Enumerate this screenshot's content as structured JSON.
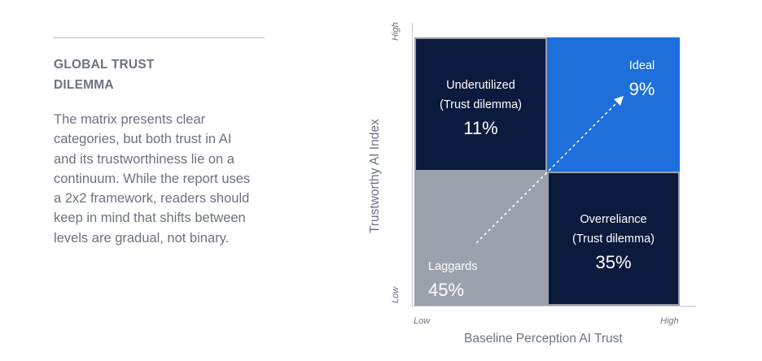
{
  "sidebar": {
    "top_fragment": "~ ~~ ~~~",
    "title_lines": [
      "GLOBAL TRUST",
      "DILEMMA"
    ],
    "body_lines": [
      "The matrix presents clear",
      "categories, but both trust in AI",
      "and its trustworthiness lie on a",
      "continuum. While the report uses",
      "a 2x2 framework, readers should",
      "keep in mind that shifts between",
      "levels are gradual, not binary."
    ]
  },
  "matrix": {
    "y_axis_label": "Trustworthy AI Index",
    "x_axis_label": "Baseline Perception AI Trust",
    "y_high": "High",
    "y_low": "Low",
    "x_low": "Low",
    "x_high": "High",
    "quadrants": {
      "top_left": {
        "label_lines": [
          "Underutilized",
          "(Trust dilemma)"
        ],
        "value": "11%",
        "color": "#0b1a3d"
      },
      "top_right": {
        "label_lines": [
          "Ideal"
        ],
        "value": "9%",
        "color": "#1d6fdb"
      },
      "bottom_left": {
        "label_lines": [
          "Laggards"
        ],
        "value": "45%",
        "color": "#9aa1ac"
      },
      "bottom_right": {
        "label_lines": [
          "Overreliance",
          "(Trust dilemma)"
        ],
        "value": "35%",
        "color": "#0b1a3d"
      }
    },
    "arrow": {
      "style": "dashed",
      "direction": "bottom-left to top-right"
    }
  }
}
